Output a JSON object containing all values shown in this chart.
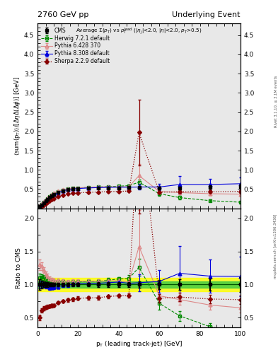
{
  "title_left": "2760 GeV pp",
  "title_right": "Underlying Event",
  "right_label1": "Rivet 3.1.10, ≥ 3.1M events",
  "right_label2": "mcplots.cern.ch [arXiv:1306.3436]",
  "ylabel_main": "⟨sum(p_{T})⟩/[ΔηΔ(Δφ)] [GeV]",
  "ylabel_ratio": "Ratio to CMS",
  "xlabel": "p_{T} (leading track-jet) [GeV]",
  "ylim_main": [
    0.0,
    4.8
  ],
  "ylim_ratio": [
    0.35,
    2.15
  ],
  "yticks_main": [
    0.5,
    1.0,
    1.5,
    2.0,
    2.5,
    3.0,
    3.5,
    4.0,
    4.5
  ],
  "yticks_ratio": [
    0.5,
    1.0,
    1.5,
    2.0
  ],
  "xlim": [
    0,
    100
  ],
  "cms_x": [
    1,
    2,
    3,
    4,
    5,
    6,
    7,
    8,
    10,
    12.5,
    15,
    17.5,
    20,
    25,
    30,
    35,
    40,
    45,
    50,
    60,
    70,
    85,
    100
  ],
  "cms_y": [
    0.05,
    0.09,
    0.14,
    0.19,
    0.24,
    0.29,
    0.33,
    0.37,
    0.42,
    0.46,
    0.49,
    0.5,
    0.51,
    0.52,
    0.53,
    0.53,
    0.53,
    0.54,
    0.54,
    0.53,
    0.53,
    0.55,
    0.57
  ],
  "cms_yerr": [
    0.004,
    0.005,
    0.006,
    0.007,
    0.008,
    0.009,
    0.01,
    0.01,
    0.012,
    0.013,
    0.014,
    0.015,
    0.015,
    0.015,
    0.018,
    0.018,
    0.018,
    0.02,
    0.025,
    0.035,
    0.04,
    0.05,
    0.065
  ],
  "herwig_x": [
    1,
    2,
    3,
    4,
    5,
    6,
    7,
    8,
    10,
    12.5,
    15,
    17.5,
    20,
    25,
    30,
    35,
    40,
    45,
    50,
    60,
    70,
    85,
    100
  ],
  "herwig_y": [
    0.055,
    0.1,
    0.155,
    0.205,
    0.255,
    0.3,
    0.345,
    0.385,
    0.44,
    0.48,
    0.505,
    0.52,
    0.53,
    0.545,
    0.555,
    0.565,
    0.575,
    0.59,
    0.68,
    0.38,
    0.28,
    0.2,
    0.16
  ],
  "herwig_yerr": [
    0.003,
    0.004,
    0.005,
    0.006,
    0.007,
    0.008,
    0.009,
    0.009,
    0.011,
    0.012,
    0.013,
    0.014,
    0.014,
    0.014,
    0.016,
    0.016,
    0.016,
    0.025,
    0.07,
    0.05,
    0.04,
    0.03,
    0.025
  ],
  "pythia6_x": [
    1,
    2,
    3,
    4,
    5,
    6,
    7,
    8,
    10,
    12.5,
    15,
    17.5,
    20,
    25,
    30,
    35,
    40,
    45,
    50,
    60,
    70,
    85,
    100
  ],
  "pythia6_y": [
    0.065,
    0.115,
    0.17,
    0.22,
    0.27,
    0.315,
    0.355,
    0.395,
    0.445,
    0.485,
    0.51,
    0.525,
    0.535,
    0.545,
    0.555,
    0.56,
    0.56,
    0.56,
    0.85,
    0.44,
    0.41,
    0.38,
    0.37
  ],
  "pythia6_yerr": [
    0.004,
    0.005,
    0.006,
    0.008,
    0.009,
    0.009,
    0.01,
    0.01,
    0.012,
    0.013,
    0.014,
    0.015,
    0.015,
    0.015,
    0.018,
    0.018,
    0.018,
    0.018,
    0.3,
    0.04,
    0.04,
    0.04,
    0.04
  ],
  "pythia8_x": [
    1,
    2,
    3,
    4,
    5,
    6,
    7,
    8,
    10,
    12.5,
    15,
    17.5,
    20,
    25,
    30,
    35,
    40,
    45,
    50,
    60,
    70,
    85,
    100
  ],
  "pythia8_y": [
    0.05,
    0.09,
    0.14,
    0.185,
    0.235,
    0.275,
    0.315,
    0.355,
    0.405,
    0.455,
    0.485,
    0.505,
    0.515,
    0.53,
    0.54,
    0.545,
    0.55,
    0.55,
    0.555,
    0.555,
    0.62,
    0.62,
    0.64
  ],
  "pythia8_yerr": [
    0.003,
    0.004,
    0.005,
    0.006,
    0.007,
    0.008,
    0.009,
    0.009,
    0.011,
    0.012,
    0.013,
    0.014,
    0.014,
    0.014,
    0.016,
    0.016,
    0.016,
    0.016,
    0.07,
    0.09,
    0.22,
    0.14,
    0.17
  ],
  "sherpa_x": [
    1,
    2,
    3,
    4,
    5,
    6,
    7,
    8,
    10,
    12.5,
    15,
    17.5,
    20,
    25,
    30,
    35,
    40,
    45,
    50,
    60,
    70,
    85,
    100
  ],
  "sherpa_y": [
    0.025,
    0.055,
    0.09,
    0.125,
    0.16,
    0.195,
    0.225,
    0.255,
    0.305,
    0.345,
    0.375,
    0.39,
    0.405,
    0.415,
    0.425,
    0.435,
    0.44,
    0.45,
    1.97,
    0.42,
    0.43,
    0.43,
    0.44
  ],
  "sherpa_yerr": [
    0.002,
    0.003,
    0.004,
    0.005,
    0.006,
    0.007,
    0.008,
    0.008,
    0.01,
    0.011,
    0.012,
    0.013,
    0.013,
    0.013,
    0.015,
    0.015,
    0.015,
    0.015,
    0.85,
    0.035,
    0.035,
    0.035,
    0.035
  ],
  "cms_band_green": 0.05,
  "cms_band_yellow": 0.1,
  "color_cms": "#000000",
  "color_herwig": "#008800",
  "color_pythia6": "#dd8888",
  "color_pythia8": "#0000dd",
  "color_sherpa": "#880000",
  "bg_color": "#e8e8e8"
}
